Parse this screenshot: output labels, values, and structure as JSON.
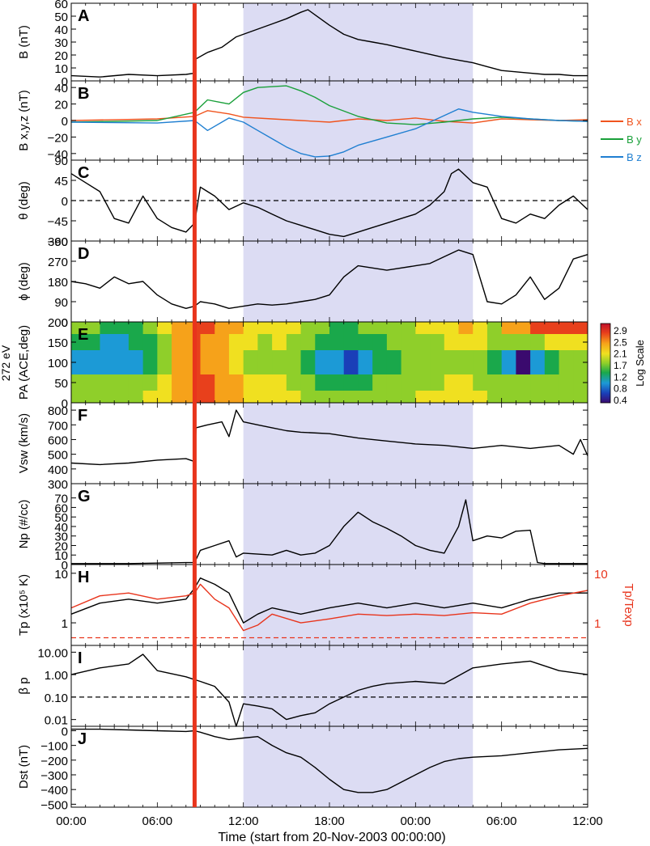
{
  "figure": {
    "time_axis_label": "Time (start from 20-Nov-2003 00:00:00)",
    "time_ticks": [
      "00:00",
      "06:00",
      "12:00",
      "18:00",
      "00:00",
      "06:00",
      "12:00"
    ],
    "shock_time_hours": 8.6,
    "shade_start_hours": 12.0,
    "shade_end_hours": 28.0,
    "colors": {
      "shade": "#dcdcf3",
      "shock": "#e8341c",
      "bx": "#f0541e",
      "by": "#1aa03a",
      "bz": "#1f7fd1",
      "trace": "#000000",
      "ratio": "#e8341c"
    }
  },
  "chart_data": [
    {
      "panel": "A",
      "type": "line",
      "ylabel": "B (nT)",
      "yticks": [
        "0",
        "10",
        "20",
        "30",
        "40",
        "50",
        "60"
      ],
      "ylim": [
        0,
        60
      ],
      "series": [
        {
          "x": [
            0,
            2,
            4,
            6,
            8,
            8.6,
            8.7,
            9.5,
            10.5,
            11.5,
            12,
            13,
            14,
            15,
            16,
            16.5,
            17,
            18,
            19,
            20,
            21,
            22,
            24,
            26,
            27,
            28,
            29,
            30,
            31,
            32,
            33,
            34,
            35,
            36
          ],
          "y": [
            4,
            3,
            5,
            4,
            5,
            6,
            17,
            22,
            26,
            34,
            36,
            40,
            44,
            48,
            53,
            55,
            51,
            43,
            36,
            32,
            30,
            28,
            23,
            18,
            16,
            14,
            11,
            8,
            7,
            6,
            5,
            5,
            4,
            4
          ]
        }
      ]
    },
    {
      "panel": "B",
      "type": "line",
      "ylabel": "B x,y,z (nT)",
      "yticks": [
        "−40",
        "−20",
        "0",
        "20",
        "40"
      ],
      "ylim": [
        -48,
        48
      ],
      "legend": [
        "B x",
        "B y",
        "B z"
      ],
      "series": [
        {
          "name": "B x",
          "x": [
            0,
            6,
            8.6,
            9.5,
            11,
            12,
            14,
            16,
            18,
            20,
            22,
            24,
            26,
            28,
            30,
            32,
            34,
            36
          ],
          "y": [
            0,
            2,
            5,
            12,
            8,
            4,
            2,
            0,
            -2,
            2,
            0,
            3,
            -1,
            -3,
            2,
            1,
            0,
            1
          ]
        },
        {
          "name": "B y",
          "x": [
            0,
            6,
            8.6,
            9.5,
            11,
            12,
            13,
            15,
            16,
            17,
            18,
            20,
            22,
            24,
            26,
            28,
            30,
            32,
            34,
            36
          ],
          "y": [
            -2,
            0,
            10,
            25,
            20,
            34,
            40,
            42,
            36,
            28,
            18,
            5,
            -3,
            -5,
            -2,
            2,
            4,
            2,
            0,
            -1
          ]
        },
        {
          "name": "B z",
          "x": [
            0,
            6,
            8.6,
            9.5,
            11,
            12,
            13,
            14,
            15,
            16,
            17,
            18,
            19,
            20,
            22,
            24,
            26,
            27,
            28,
            30,
            32,
            34,
            36
          ],
          "y": [
            -2,
            -3,
            0,
            -12,
            3,
            -2,
            -12,
            -22,
            -32,
            -40,
            -44,
            -43,
            -38,
            -30,
            -20,
            -10,
            6,
            14,
            10,
            5,
            2,
            0,
            -1
          ]
        }
      ]
    },
    {
      "panel": "C",
      "type": "line",
      "ylabel": "θ (deg)",
      "yticks": [
        "−90",
        "−45",
        "0",
        "45",
        "90"
      ],
      "ylim": [
        -90,
        90
      ],
      "reference_line": 0,
      "series": [
        {
          "x": [
            0,
            1,
            2,
            3,
            4,
            5,
            6,
            7,
            8,
            8.6,
            9,
            10,
            11,
            12,
            13,
            14,
            15,
            16,
            17,
            18,
            19,
            20,
            21,
            22,
            23,
            24,
            25,
            26,
            26.5,
            27,
            28,
            29,
            30,
            31,
            32,
            33,
            34,
            35,
            36
          ],
          "y": [
            60,
            40,
            20,
            -40,
            -50,
            10,
            -40,
            -60,
            -70,
            -50,
            30,
            10,
            -20,
            -5,
            -15,
            -30,
            -45,
            -55,
            -65,
            -75,
            -80,
            -70,
            -60,
            -50,
            -40,
            -30,
            -10,
            20,
            60,
            70,
            40,
            30,
            -40,
            -50,
            -30,
            -40,
            -10,
            10,
            -20
          ]
        }
      ]
    },
    {
      "panel": "D",
      "type": "line",
      "ylabel": "ϕ (deg)",
      "yticks": [
        "0",
        "90",
        "180",
        "270",
        "360"
      ],
      "ylim": [
        0,
        360
      ],
      "series": [
        {
          "x": [
            0,
            1,
            2,
            3,
            4,
            5,
            6,
            7,
            8,
            8.6,
            9,
            10,
            11,
            12,
            13,
            14,
            15,
            16,
            17,
            18,
            19,
            20,
            21,
            22,
            24,
            25,
            26,
            27,
            28,
            29,
            30,
            31,
            32,
            33,
            34,
            35,
            36
          ],
          "y": [
            180,
            170,
            150,
            200,
            170,
            180,
            120,
            80,
            60,
            70,
            90,
            80,
            60,
            70,
            80,
            75,
            80,
            90,
            100,
            120,
            200,
            250,
            240,
            230,
            250,
            260,
            290,
            320,
            300,
            90,
            80,
            120,
            200,
            100,
            150,
            280,
            300
          ]
        }
      ]
    },
    {
      "panel": "E",
      "type": "heatmap",
      "ylabel_outer": "272 eV",
      "ylabel": "PA (ACE,deg)",
      "yticks": [
        "0",
        "50",
        "100",
        "150",
        "200"
      ],
      "ylim": [
        0,
        200
      ],
      "colorbar_title": "Log Scale",
      "colorbar_ticks": [
        "2.9",
        "2.5",
        "2.1",
        "1.7",
        "1.2",
        "0.8",
        "0.4"
      ],
      "colorbar_stops": [
        "#3a0a6e",
        "#1a3fb8",
        "#1c9ad6",
        "#1aa84b",
        "#8fcf2a",
        "#f0e020",
        "#f6a21a",
        "#e8401c",
        "#c0102a"
      ],
      "x_segments": [
        0,
        2,
        4,
        5,
        6,
        7,
        8.6,
        9,
        10,
        11,
        12,
        13,
        14,
        15,
        16,
        17,
        18,
        19,
        20,
        21,
        22,
        23,
        24,
        25,
        26,
        27,
        28,
        29,
        30,
        31,
        32,
        33,
        34,
        35,
        36
      ],
      "rows": [
        {
          "pa": [
            170,
            200
          ],
          "v": [
            1.5,
            1.2,
            1.3,
            1.5,
            1.9,
            2.3,
            2.6,
            2.5,
            2.3,
            2.2,
            2.0,
            1.9,
            2.0,
            2.0,
            1.6,
            1.6,
            1.4,
            1.4,
            1.5,
            1.6,
            1.7,
            1.8,
            1.9,
            2.0,
            2.1,
            2.2,
            2.1,
            1.8,
            2.2,
            2.4,
            2.5,
            2.6,
            2.6,
            2.5
          ]
        },
        {
          "pa": [
            130,
            170
          ],
          "v": [
            1.2,
            1.0,
            1.2,
            1.4,
            1.7,
            2.2,
            2.5,
            2.4,
            2.2,
            2.1,
            1.9,
            1.8,
            1.9,
            1.8,
            1.5,
            1.3,
            1.2,
            1.2,
            1.3,
            1.4,
            1.5,
            1.6,
            1.8,
            1.8,
            1.9,
            2.0,
            1.9,
            1.6,
            1.7,
            1.8,
            1.8,
            1.9,
            2.0,
            2.0
          ]
        },
        {
          "pa": [
            70,
            130
          ],
          "v": [
            1.0,
            1.1,
            1.0,
            1.3,
            1.7,
            2.2,
            2.5,
            2.4,
            2.2,
            2.0,
            1.8,
            1.7,
            1.8,
            1.7,
            1.4,
            1.1,
            0.9,
            0.7,
            1.0,
            1.2,
            1.3,
            1.5,
            1.6,
            1.7,
            1.8,
            1.7,
            1.6,
            1.3,
            1.0,
            0.5,
            1.0,
            1.3,
            1.5,
            1.6
          ]
        },
        {
          "pa": [
            30,
            70
          ],
          "v": [
            1.6,
            1.5,
            1.6,
            1.7,
            1.9,
            2.3,
            2.6,
            2.5,
            2.3,
            2.2,
            2.0,
            1.9,
            1.9,
            1.8,
            1.6,
            1.4,
            1.3,
            1.3,
            1.4,
            1.5,
            1.6,
            1.7,
            1.8,
            1.8,
            1.9,
            2.0,
            1.8,
            1.5,
            1.6,
            1.5,
            1.6,
            1.7,
            1.7,
            1.8
          ]
        },
        {
          "pa": [
            0,
            30
          ],
          "v": [
            1.8,
            1.7,
            1.8,
            1.9,
            2.0,
            2.4,
            2.7,
            2.6,
            2.4,
            2.3,
            2.1,
            2.0,
            2.0,
            1.9,
            1.7,
            1.6,
            1.5,
            1.5,
            1.6,
            1.7,
            1.8,
            1.8,
            1.9,
            1.9,
            2.0,
            2.0,
            1.9,
            1.7,
            1.7,
            1.6,
            1.7,
            1.7,
            1.8,
            1.8
          ]
        }
      ]
    },
    {
      "panel": "F",
      "type": "line",
      "ylabel": "Vsw (km/s)",
      "yticks": [
        "300",
        "400",
        "500",
        "600",
        "700",
        "800"
      ],
      "ylim": [
        300,
        850
      ],
      "series": [
        {
          "x": [
            0,
            2,
            4,
            6,
            8,
            8.6,
            8.7,
            9.5,
            10.5,
            11,
            11.5,
            12,
            13,
            14,
            15,
            16,
            18,
            20,
            22,
            24,
            26,
            28,
            30,
            32,
            34,
            35,
            35.5,
            36
          ],
          "y": [
            440,
            430,
            440,
            460,
            470,
            450,
            680,
            700,
            720,
            620,
            800,
            720,
            700,
            680,
            660,
            650,
            640,
            610,
            590,
            570,
            560,
            540,
            560,
            540,
            560,
            500,
            600,
            490
          ]
        }
      ]
    },
    {
      "panel": "G",
      "type": "line",
      "ylabel": "Np (#/cc)",
      "yticks": [
        "0",
        "10",
        "20",
        "30",
        "40",
        "50",
        "60",
        "70"
      ],
      "ylim": [
        0,
        85
      ],
      "series": [
        {
          "x": [
            0,
            4,
            8,
            8.6,
            9,
            10,
            11,
            11.5,
            12,
            14,
            15,
            16,
            17,
            18,
            19,
            20,
            21,
            22,
            23,
            24,
            25,
            26,
            27,
            27.5,
            28,
            29,
            30,
            31,
            32,
            32.5,
            33,
            34,
            36
          ],
          "y": [
            1,
            1,
            2,
            2,
            15,
            20,
            25,
            8,
            12,
            10,
            15,
            10,
            12,
            20,
            40,
            55,
            45,
            38,
            30,
            20,
            15,
            12,
            40,
            68,
            25,
            30,
            28,
            35,
            36,
            2,
            1,
            1,
            1
          ]
        }
      ]
    },
    {
      "panel": "H",
      "type": "line",
      "ylabel": "Tp (x10⁵ K)",
      "ylabel_right": "Tp/Texp",
      "yticks": [
        "1",
        "10"
      ],
      "yticks_right": [
        "1",
        "10"
      ],
      "log_scale": true,
      "ylim": [
        0.35,
        15
      ],
      "reference_line": 0.5,
      "series": [
        {
          "name": "Tp",
          "x": [
            0,
            2,
            4,
            6,
            8,
            8.6,
            9,
            10,
            11,
            12,
            13,
            14,
            16,
            18,
            20,
            22,
            24,
            26,
            28,
            30,
            32,
            34,
            36
          ],
          "y": [
            1.5,
            2.5,
            3.0,
            2.5,
            3.0,
            5.0,
            8.0,
            6.0,
            4.0,
            1.0,
            1.5,
            2.0,
            1.5,
            2.0,
            2.5,
            2.0,
            2.5,
            2.0,
            2.5,
            2.0,
            3.0,
            4.0,
            4.0
          ]
        },
        {
          "name": "Tp/Texp",
          "x": [
            0,
            2,
            4,
            6,
            8,
            8.6,
            9,
            10,
            11,
            12,
            13,
            14,
            16,
            18,
            20,
            22,
            24,
            26,
            28,
            30,
            32,
            34,
            36
          ],
          "y": [
            2.0,
            3.5,
            4.0,
            3.0,
            3.5,
            4.0,
            6.0,
            3.0,
            2.0,
            0.7,
            0.9,
            1.5,
            1.0,
            1.2,
            1.5,
            1.4,
            1.5,
            1.4,
            1.6,
            1.5,
            2.5,
            3.5,
            4.5
          ]
        }
      ]
    },
    {
      "panel": "I",
      "type": "line",
      "ylabel": "β p",
      "yticks": [
        "0.01",
        "0.10",
        "1.00",
        "10.00"
      ],
      "log_scale": true,
      "ylim": [
        0.005,
        20
      ],
      "reference_line": 0.1,
      "series": [
        {
          "x": [
            0,
            2,
            4,
            5,
            6,
            8,
            8.6,
            9,
            10,
            11,
            11.5,
            12,
            13,
            14,
            15,
            16,
            17,
            18,
            19,
            20,
            21,
            22,
            24,
            26,
            28,
            30,
            32,
            34,
            36
          ],
          "y": [
            1.0,
            2.0,
            3.0,
            8.0,
            1.5,
            0.8,
            0.6,
            0.5,
            0.3,
            0.06,
            0.004,
            0.05,
            0.04,
            0.03,
            0.01,
            0.015,
            0.02,
            0.05,
            0.1,
            0.2,
            0.3,
            0.4,
            0.5,
            0.4,
            2.0,
            3.0,
            4.0,
            1.5,
            1.0
          ]
        }
      ]
    },
    {
      "panel": "J",
      "type": "line",
      "ylabel": "Dst (nT)",
      "yticks": [
        "−500",
        "−400",
        "−300",
        "−200",
        "−100",
        "0"
      ],
      "ylim": [
        -520,
        30
      ],
      "series": [
        {
          "x": [
            0,
            2,
            4,
            6,
            8,
            8.6,
            9,
            10,
            11,
            12,
            13,
            14,
            15,
            16,
            17,
            18,
            19,
            20,
            21,
            22,
            23,
            24,
            25,
            26,
            27,
            28,
            30,
            32,
            34,
            36
          ],
          "y": [
            10,
            10,
            5,
            0,
            -5,
            0,
            -10,
            -40,
            -60,
            -50,
            -40,
            -100,
            -150,
            -180,
            -250,
            -330,
            -400,
            -420,
            -420,
            -400,
            -350,
            -300,
            -250,
            -210,
            -190,
            -180,
            -170,
            -150,
            -130,
            -120
          ]
        }
      ]
    }
  ]
}
